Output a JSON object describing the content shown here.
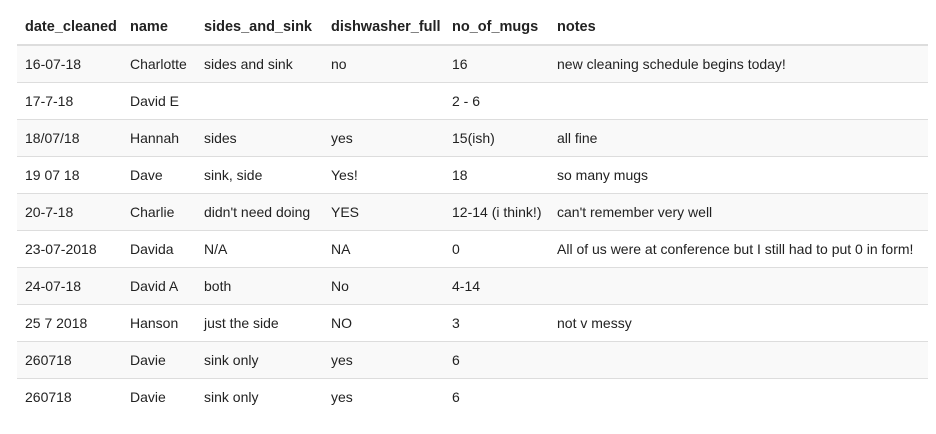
{
  "table": {
    "columns": [
      "date_cleaned",
      "name",
      "sides_and_sink",
      "dishwasher_full",
      "no_of_mugs",
      "notes"
    ],
    "rows": [
      [
        "16-07-18",
        "Charlotte",
        "sides and sink",
        "no",
        "16",
        "new cleaning schedule begins today!"
      ],
      [
        "17-7-18",
        "David E",
        "",
        "",
        "2 - 6",
        ""
      ],
      [
        "18/07/18",
        "Hannah",
        "sides",
        "yes",
        "15(ish)",
        "all fine"
      ],
      [
        "19 07 18",
        "Dave",
        "sink, side",
        "Yes!",
        "18",
        "so many mugs"
      ],
      [
        "20-7-18",
        "Charlie",
        "didn't need doing",
        "YES",
        "12-14 (i think!)",
        "can't remember very well"
      ],
      [
        "23-07-2018",
        "Davida",
        "N/A",
        "NA",
        "0",
        "All of us were at conference but I still had to put 0 in form!"
      ],
      [
        "24-07-18",
        "David A",
        "both",
        "No",
        "4-14",
        ""
      ],
      [
        "25 7 2018",
        "Hanson",
        "just the side",
        "NO",
        "3",
        "not v messy"
      ],
      [
        "260718",
        "Davie",
        "sink only",
        "yes",
        "6",
        ""
      ],
      [
        "260718",
        "Davie",
        "sink only",
        "yes",
        "6",
        ""
      ]
    ]
  }
}
